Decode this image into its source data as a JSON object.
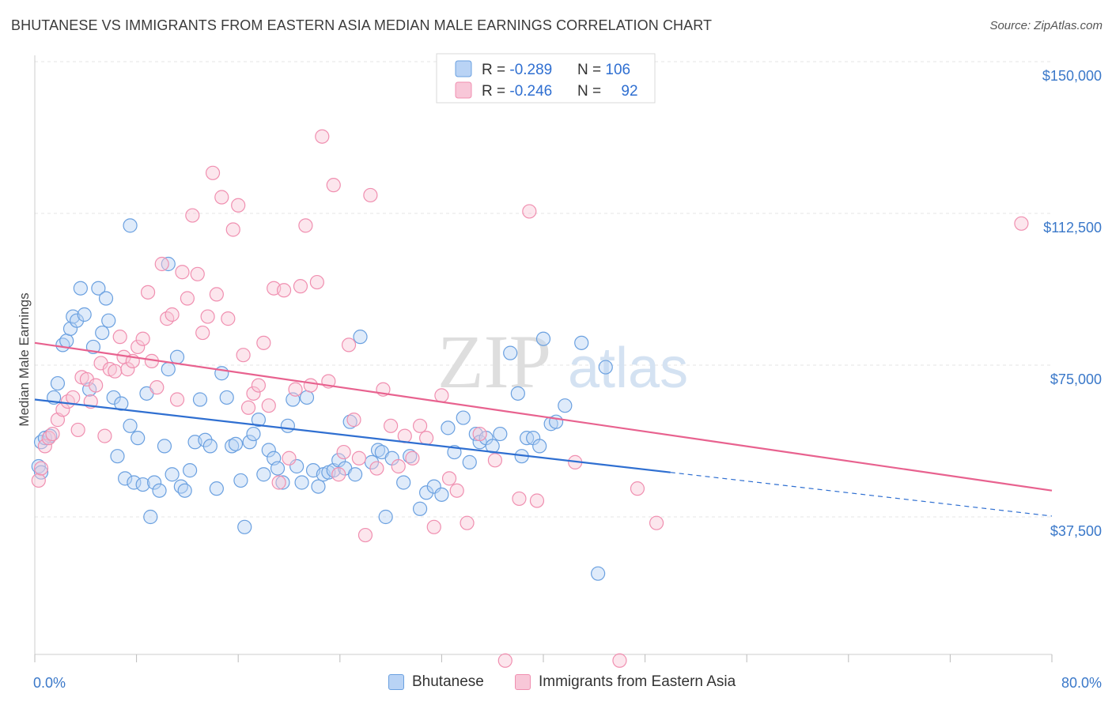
{
  "title": "BHUTANESE VS IMMIGRANTS FROM EASTERN ASIA MEDIAN MALE EARNINGS CORRELATION CHART",
  "source": "Source: ZipAtlas.com",
  "watermark": {
    "zip": "ZIP",
    "atlas": "atlas"
  },
  "colors": {
    "blue": "#6aa0e0",
    "blue_line": "#2f6fd1",
    "pink": "#f08fb0",
    "pink_line": "#e8628f",
    "axis_text": "#3a78c9"
  },
  "legend_top": [
    {
      "series": "Bhutanese",
      "r_label": "R = ",
      "r": "-0.289",
      "n_label": "N = ",
      "n": "106"
    },
    {
      "series": "Immigrants from Eastern Asia",
      "r_label": "R = ",
      "r": "-0.246",
      "n_label": "N = ",
      "n": "92"
    }
  ],
  "chart_data": {
    "type": "scatter",
    "title": "BHUTANESE VS IMMIGRANTS FROM EASTERN ASIA MEDIAN MALE EARNINGS CORRELATION CHART",
    "xlabel": "",
    "ylabel": "Median Male Earnings",
    "xlim": [
      0,
      80
    ],
    "ylim": [
      10000,
      155000
    ],
    "x_tick_labels": [
      "0.0%",
      "80.0%"
    ],
    "y_ticks": [
      37500,
      75000,
      112500,
      150000
    ],
    "y_tick_labels": [
      "$37,500",
      "$75,000",
      "$112,500",
      "$150,000"
    ],
    "grid": true,
    "legend_position": "top-center",
    "series": [
      {
        "name": "Bhutanese",
        "color": "#6aa0e0",
        "trend": {
          "x": [
            0,
            50
          ],
          "y": [
            66500,
            48500
          ],
          "dashed_to": [
            80,
            37700
          ]
        },
        "points": [
          [
            0.3,
            50000
          ],
          [
            0.5,
            56000
          ],
          [
            0.8,
            57000
          ],
          [
            1.2,
            57500
          ],
          [
            1.5,
            67000
          ],
          [
            1.8,
            70500
          ],
          [
            2.2,
            80000
          ],
          [
            2.5,
            81000
          ],
          [
            2.8,
            84000
          ],
          [
            3.0,
            87000
          ],
          [
            3.3,
            86000
          ],
          [
            3.6,
            94000
          ],
          [
            3.9,
            87500
          ],
          [
            4.3,
            69000
          ],
          [
            4.6,
            79500
          ],
          [
            5.0,
            94000
          ],
          [
            5.3,
            83000
          ],
          [
            5.6,
            91500
          ],
          [
            5.8,
            86000
          ],
          [
            6.2,
            67000
          ],
          [
            6.5,
            52500
          ],
          [
            6.8,
            65500
          ],
          [
            7.1,
            47000
          ],
          [
            7.5,
            60000
          ],
          [
            7.8,
            46000
          ],
          [
            8.1,
            57000
          ],
          [
            8.5,
            45500
          ],
          [
            8.8,
            68000
          ],
          [
            9.1,
            37500
          ],
          [
            9.4,
            46000
          ],
          [
            9.8,
            44000
          ],
          [
            10.2,
            55000
          ],
          [
            10.5,
            74000
          ],
          [
            10.8,
            48000
          ],
          [
            11.2,
            77000
          ],
          [
            11.5,
            45000
          ],
          [
            11.8,
            44000
          ],
          [
            12.2,
            49000
          ],
          [
            12.6,
            56000
          ],
          [
            13.0,
            66500
          ],
          [
            13.4,
            56500
          ],
          [
            13.8,
            55000
          ],
          [
            14.3,
            44500
          ],
          [
            14.7,
            73000
          ],
          [
            15.1,
            67000
          ],
          [
            15.5,
            55000
          ],
          [
            15.8,
            55500
          ],
          [
            16.2,
            46500
          ],
          [
            16.5,
            35000
          ],
          [
            16.9,
            56000
          ],
          [
            17.2,
            58000
          ],
          [
            17.6,
            61500
          ],
          [
            18.0,
            48000
          ],
          [
            18.4,
            54000
          ],
          [
            18.8,
            52000
          ],
          [
            19.1,
            49500
          ],
          [
            19.5,
            46000
          ],
          [
            19.9,
            60000
          ],
          [
            20.3,
            66500
          ],
          [
            20.6,
            50000
          ],
          [
            21.0,
            46000
          ],
          [
            21.4,
            67000
          ],
          [
            21.9,
            49000
          ],
          [
            22.3,
            45000
          ],
          [
            22.7,
            48000
          ],
          [
            23.1,
            48500
          ],
          [
            23.5,
            49000
          ],
          [
            23.9,
            51500
          ],
          [
            24.4,
            49500
          ],
          [
            24.8,
            61000
          ],
          [
            25.2,
            48000
          ],
          [
            25.6,
            82000
          ],
          [
            26.5,
            51000
          ],
          [
            27.0,
            54000
          ],
          [
            27.3,
            53500
          ],
          [
            27.6,
            37500
          ],
          [
            28.1,
            52000
          ],
          [
            29.0,
            46000
          ],
          [
            29.5,
            52500
          ],
          [
            30.3,
            39500
          ],
          [
            30.8,
            43500
          ],
          [
            31.4,
            45000
          ],
          [
            32.0,
            43000
          ],
          [
            32.5,
            59500
          ],
          [
            33.0,
            53500
          ],
          [
            33.7,
            62000
          ],
          [
            34.2,
            51000
          ],
          [
            34.7,
            58000
          ],
          [
            35.0,
            56000
          ],
          [
            35.5,
            57000
          ],
          [
            36.0,
            55000
          ],
          [
            36.6,
            58000
          ],
          [
            37.4,
            78000
          ],
          [
            38.0,
            68000
          ],
          [
            38.3,
            52500
          ],
          [
            38.7,
            57000
          ],
          [
            39.2,
            57000
          ],
          [
            39.7,
            55000
          ],
          [
            40.0,
            81500
          ],
          [
            40.6,
            60500
          ],
          [
            41.0,
            61000
          ],
          [
            41.7,
            65000
          ],
          [
            43.0,
            80500
          ],
          [
            44.9,
            74500
          ],
          [
            44.3,
            23500
          ],
          [
            7.5,
            109500
          ],
          [
            10.5,
            100000
          ],
          [
            0.5,
            48500
          ]
        ]
      },
      {
        "name": "Immigrants from Eastern Asia",
        "color": "#f08fb0",
        "trend": {
          "x": [
            0,
            80
          ],
          "y": [
            80500,
            44000
          ]
        },
        "points": [
          [
            0.3,
            46500
          ],
          [
            0.5,
            49500
          ],
          [
            0.8,
            55000
          ],
          [
            1.1,
            57000
          ],
          [
            1.4,
            58000
          ],
          [
            1.8,
            61500
          ],
          [
            2.2,
            64000
          ],
          [
            2.6,
            66000
          ],
          [
            3.0,
            67000
          ],
          [
            3.4,
            59000
          ],
          [
            3.7,
            72000
          ],
          [
            4.1,
            71500
          ],
          [
            4.4,
            66000
          ],
          [
            4.8,
            70000
          ],
          [
            5.2,
            75500
          ],
          [
            5.5,
            57500
          ],
          [
            5.9,
            74000
          ],
          [
            6.3,
            73500
          ],
          [
            6.7,
            82000
          ],
          [
            7.0,
            77000
          ],
          [
            7.3,
            74000
          ],
          [
            7.7,
            76000
          ],
          [
            8.1,
            79500
          ],
          [
            8.5,
            81500
          ],
          [
            8.9,
            93000
          ],
          [
            9.2,
            76000
          ],
          [
            9.6,
            69500
          ],
          [
            10.0,
            100000
          ],
          [
            10.4,
            86500
          ],
          [
            10.8,
            87500
          ],
          [
            11.2,
            66500
          ],
          [
            11.6,
            98000
          ],
          [
            12.0,
            91500
          ],
          [
            12.4,
            112000
          ],
          [
            12.8,
            97500
          ],
          [
            13.2,
            83000
          ],
          [
            13.6,
            87000
          ],
          [
            14.0,
            122500
          ],
          [
            14.3,
            92500
          ],
          [
            14.7,
            116500
          ],
          [
            15.2,
            86500
          ],
          [
            15.6,
            108500
          ],
          [
            16.0,
            114500
          ],
          [
            16.4,
            77500
          ],
          [
            16.8,
            64500
          ],
          [
            17.2,
            68000
          ],
          [
            17.6,
            70000
          ],
          [
            18.0,
            80500
          ],
          [
            18.4,
            65000
          ],
          [
            18.8,
            94000
          ],
          [
            19.2,
            46000
          ],
          [
            19.6,
            93500
          ],
          [
            20.0,
            52000
          ],
          [
            20.5,
            69000
          ],
          [
            20.9,
            94500
          ],
          [
            21.3,
            109500
          ],
          [
            21.7,
            70000
          ],
          [
            22.2,
            95500
          ],
          [
            22.6,
            131500
          ],
          [
            23.1,
            71000
          ],
          [
            23.5,
            119500
          ],
          [
            23.9,
            48000
          ],
          [
            24.3,
            53500
          ],
          [
            24.7,
            80000
          ],
          [
            25.1,
            61500
          ],
          [
            25.5,
            52000
          ],
          [
            26.0,
            33000
          ],
          [
            26.4,
            117000
          ],
          [
            26.9,
            49500
          ],
          [
            27.4,
            69000
          ],
          [
            28.0,
            60000
          ],
          [
            28.6,
            50000
          ],
          [
            29.1,
            57500
          ],
          [
            29.7,
            52000
          ],
          [
            30.3,
            60000
          ],
          [
            30.8,
            57000
          ],
          [
            31.4,
            35000
          ],
          [
            32.0,
            67500
          ],
          [
            32.6,
            47000
          ],
          [
            33.2,
            44000
          ],
          [
            34.0,
            36000
          ],
          [
            35.0,
            58000
          ],
          [
            36.2,
            51500
          ],
          [
            37.0,
            2000
          ],
          [
            38.1,
            42000
          ],
          [
            38.9,
            113000
          ],
          [
            39.5,
            41500
          ],
          [
            42.5,
            51000
          ],
          [
            46.0,
            2000
          ],
          [
            47.4,
            44500
          ],
          [
            48.9,
            36000
          ],
          [
            77.6,
            110000
          ]
        ]
      }
    ]
  }
}
